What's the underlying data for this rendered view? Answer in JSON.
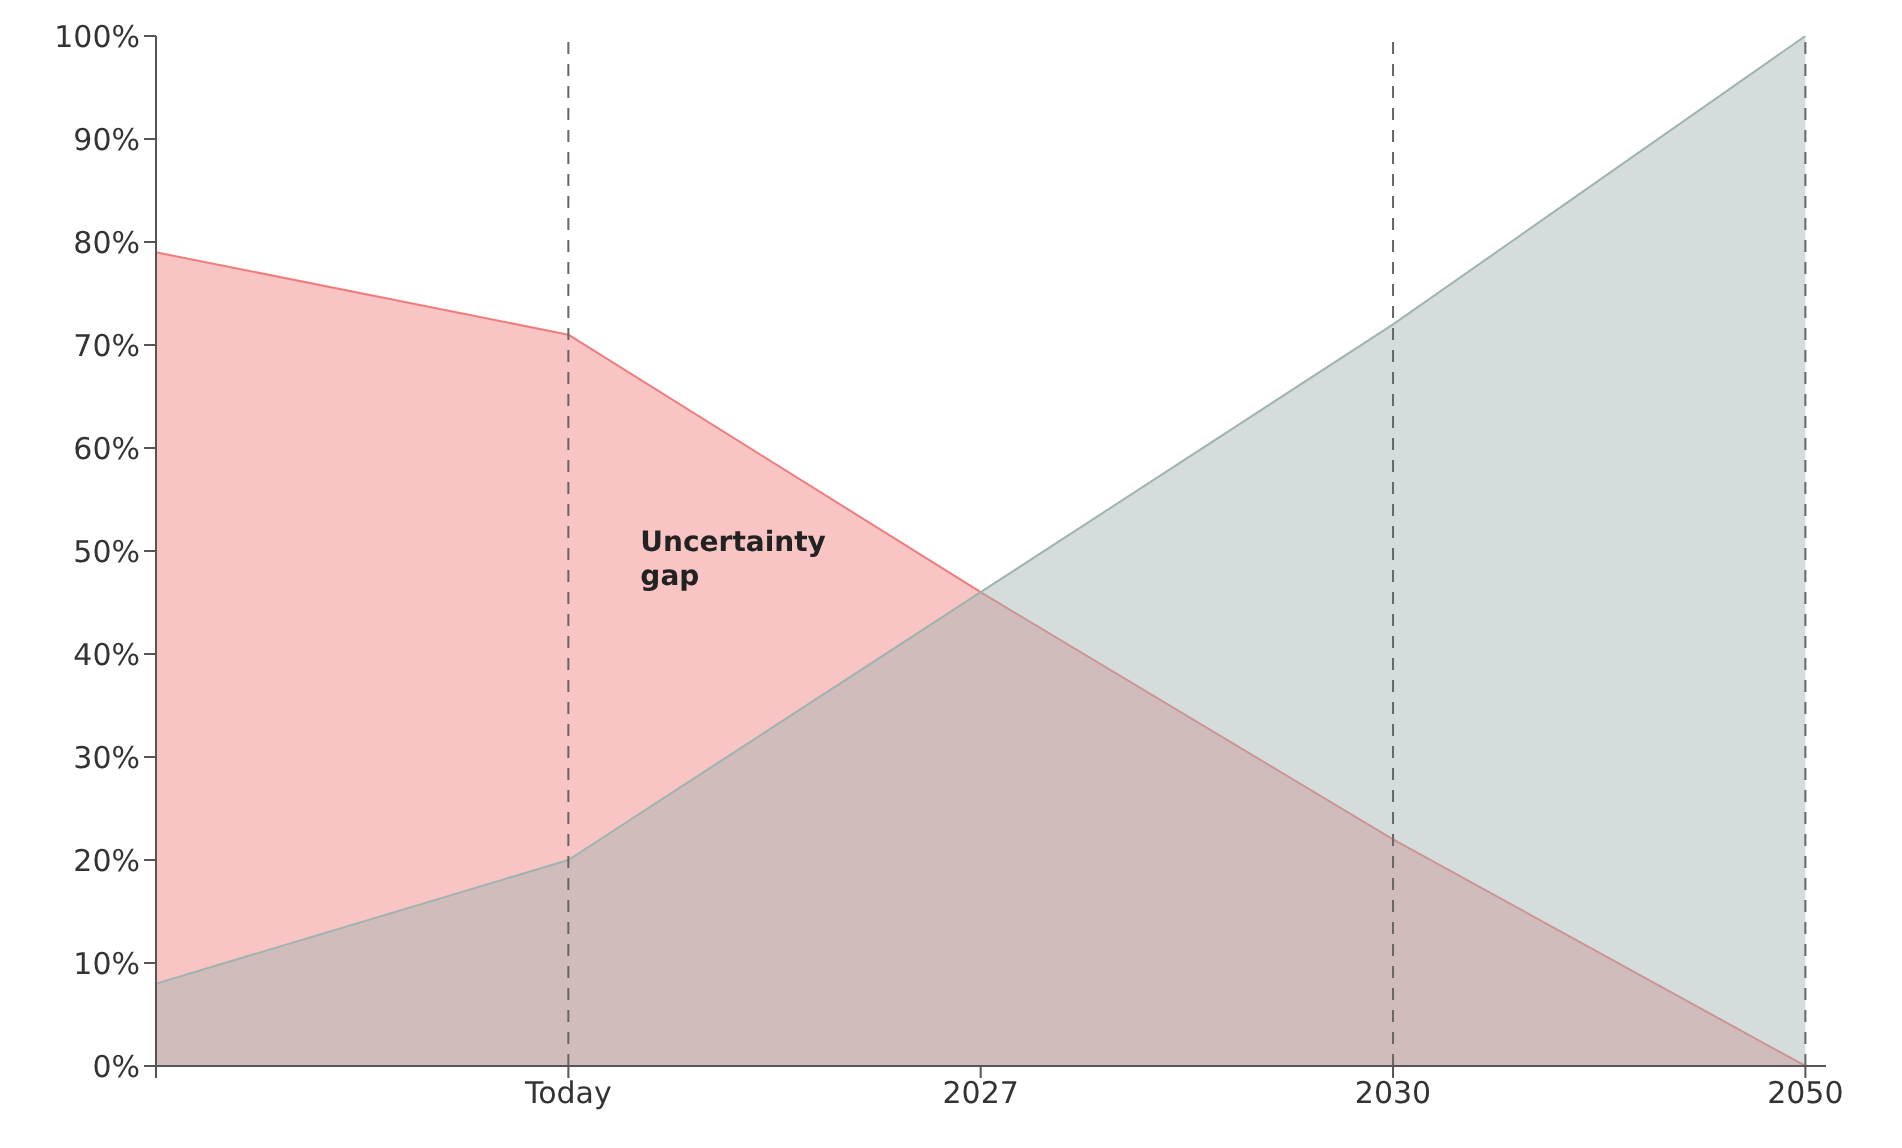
{
  "chart_data": {
    "type": "area",
    "categories": [
      null,
      "Today",
      "2027",
      "2030",
      "2050"
    ],
    "series": [
      {
        "color": "#f07c7c",
        "values": [
          79,
          71,
          46,
          22,
          0
        ]
      },
      {
        "color": "#9fb3b0",
        "values": [
          8,
          20,
          46,
          72,
          100
        ]
      }
    ],
    "ylim": [
      0,
      100
    ],
    "yticks": [
      {
        "value": 0,
        "label": "0%"
      },
      {
        "value": 10,
        "label": "10%"
      },
      {
        "value": 20,
        "label": "20%"
      },
      {
        "value": 30,
        "label": "30%"
      },
      {
        "value": 40,
        "label": "40%"
      },
      {
        "value": 50,
        "label": "50%"
      },
      {
        "value": 60,
        "label": "60%"
      },
      {
        "value": 70,
        "label": "70%"
      },
      {
        "value": 80,
        "label": "80%"
      },
      {
        "value": 90,
        "label": "90%"
      },
      {
        "value": 100,
        "label": "100%"
      }
    ],
    "ref_lines": [
      {
        "axis": "x",
        "value": "Today",
        "line_style": "dashed",
        "color": "#666666"
      },
      {
        "axis": "x",
        "value": "2030",
        "line_style": "dashed",
        "color": "#666666"
      },
      {
        "axis": "x",
        "value": "2050",
        "line_style": "dashed",
        "color": "#666666"
      }
    ],
    "annotations": [
      {
        "text": "Uncertainty gap",
        "x": "Today",
        "y": 50
      }
    ],
    "grid": false,
    "legend": false
  }
}
